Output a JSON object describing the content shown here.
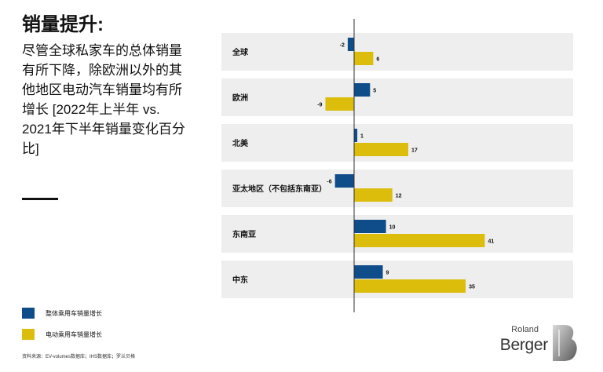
{
  "header": {
    "title": "销量提升:",
    "subtitle": "尽管全球私家车的总体销量有所下降，除欧洲以外的其他地区电动汽车销量均有所增长 [2022年上半年 vs. 2021年下半年销量变化百分比]"
  },
  "chart_data": {
    "type": "bar",
    "orientation": "horizontal",
    "categories": [
      "全球",
      "欧洲",
      "北美",
      "亚太地区（不包括东南亚）",
      "东南亚",
      "中东"
    ],
    "series": [
      {
        "name": "整体乘用车销量增长",
        "values": [
          -2,
          5,
          1,
          -6,
          10,
          9
        ],
        "color": "#0f4c8a"
      },
      {
        "name": "电动乘用车销量增长",
        "values": [
          6,
          -9,
          17,
          12,
          41,
          35
        ],
        "color": "#dcbd0c"
      }
    ],
    "data_labels": true,
    "grid": false,
    "legend_position": "bottom-left"
  },
  "footer": {
    "source": "资料来源：EV-volumes数据库；IHS数据库；罗兰贝格"
  },
  "logo": {
    "line1": "Roland",
    "line2": "Berger"
  },
  "colors": {
    "panel_bg": "#eeeeee",
    "axis": "#333333"
  }
}
